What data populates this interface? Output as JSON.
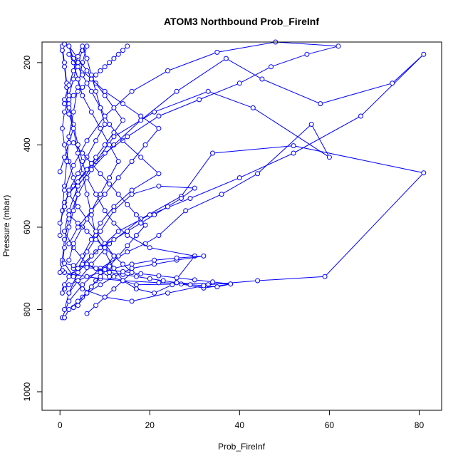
{
  "chart_data": {
    "type": "line",
    "title": "ATOM3 Northbound Prob_FireInf",
    "xlabel": "Prob_FireInf",
    "ylabel": "Pressure (mbar)",
    "xlim": [
      -4,
      85
    ],
    "ylim": [
      1045,
      150
    ],
    "y_reversed": true,
    "grid": false,
    "legend": "none",
    "x_ticks": [
      0,
      20,
      40,
      60,
      80
    ],
    "y_ticks": [
      200,
      400,
      600,
      800,
      1000
    ],
    "series_color": "#0000ff",
    "marker": "open-circle",
    "series": [
      {
        "x": [
          0.5,
          2,
          5,
          9,
          15,
          19,
          22,
          28,
          36,
          44,
          56,
          60,
          43,
          33,
          21,
          12,
          8,
          4,
          2,
          1,
          3,
          6,
          11,
          17,
          27,
          32,
          38,
          22,
          14,
          9,
          6,
          3,
          1,
          0.5
        ],
        "y": [
          820,
          780,
          740,
          700,
          660,
          640,
          620,
          560,
          520,
          470,
          350,
          430,
          310,
          270,
          320,
          380,
          440,
          500,
          560,
          610,
          650,
          690,
          720,
          740,
          738,
          748,
          738,
          735,
          730,
          725,
          720,
          715,
          710,
          705
        ]
      },
      {
        "x": [
          1,
          2,
          4,
          8,
          13,
          20,
          29,
          40,
          52,
          67,
          81,
          74,
          58,
          45,
          37,
          26,
          18,
          12,
          7,
          4,
          2,
          1,
          0.5,
          3,
          5,
          10,
          16,
          24,
          33,
          44,
          59,
          81,
          52,
          34,
          27,
          18,
          11,
          7,
          4,
          2
        ],
        "y": [
          800,
          760,
          710,
          660,
          610,
          570,
          530,
          480,
          420,
          330,
          180,
          250,
          300,
          240,
          190,
          270,
          340,
          400,
          460,
          520,
          580,
          630,
          680,
          720,
          750,
          770,
          780,
          760,
          740,
          730,
          720,
          468,
          402,
          420,
          525,
          580,
          640,
          690,
          730,
          760
        ]
      },
      {
        "x": [
          0.5,
          1,
          1.5,
          2,
          3,
          4,
          5,
          6,
          7,
          8,
          10,
          12,
          14,
          17,
          21,
          25,
          30,
          20,
          15,
          12,
          10,
          8,
          6,
          5,
          4,
          3,
          2,
          1.5,
          1,
          0.5
        ],
        "y": [
          170,
          210,
          260,
          310,
          360,
          420,
          470,
          520,
          570,
          620,
          660,
          700,
          730,
          750,
          760,
          740,
          670,
          650,
          620,
          590,
          560,
          520,
          480,
          440,
          400,
          350,
          300,
          250,
          200,
          160
        ]
      },
      {
        "x": [
          0,
          0.5,
          1,
          2,
          3,
          4,
          3,
          2,
          1,
          0.5,
          1,
          2,
          3,
          4,
          5,
          6,
          5,
          4,
          3,
          2,
          1.5,
          1,
          0.5,
          0
        ],
        "y": [
          710,
          690,
          650,
          600,
          560,
          520,
          480,
          440,
          400,
          360,
          320,
          280,
          240,
          200,
          170,
          160,
          200,
          260,
          320,
          380,
          440,
          500,
          560,
          620
        ]
      },
      {
        "x": [
          2,
          3,
          5,
          7,
          9,
          11,
          13,
          11,
          9,
          7,
          5,
          4,
          3,
          2,
          3,
          5,
          7,
          9,
          11,
          14,
          18,
          22,
          16,
          12,
          9,
          7,
          5,
          3
        ],
        "y": [
          680,
          640,
          600,
          560,
          520,
          480,
          440,
          400,
          360,
          320,
          280,
          240,
          200,
          160,
          190,
          230,
          270,
          310,
          350,
          390,
          430,
          470,
          510,
          550,
          590,
          630,
          670,
          700
        ]
      },
      {
        "x": [
          1,
          3,
          6,
          10,
          15,
          22,
          31,
          40,
          47,
          55,
          62,
          48,
          35,
          24,
          16,
          10,
          6,
          3,
          1
        ],
        "y": [
          540,
          500,
          460,
          420,
          380,
          330,
          290,
          250,
          210,
          180,
          160,
          150,
          175,
          220,
          270,
          330,
          390,
          450,
          510
        ]
      },
      {
        "x": [
          4,
          6,
          8,
          10,
          12,
          10,
          8,
          6,
          4,
          2,
          4,
          6,
          8,
          10,
          12,
          14,
          12,
          10,
          8,
          6,
          4,
          2,
          1
        ],
        "y": [
          790,
          760,
          730,
          700,
          670,
          640,
          610,
          580,
          550,
          520,
          490,
          460,
          430,
          400,
          370,
          340,
          310,
          280,
          250,
          220,
          190,
          160,
          155
        ]
      },
      {
        "x": [
          0,
          1,
          2,
          3,
          2,
          1,
          2,
          3,
          4,
          5,
          6,
          7,
          8,
          9,
          10,
          8,
          6,
          4,
          2,
          1,
          0
        ],
        "y": [
          465,
          430,
          395,
          360,
          325,
          290,
          255,
          220,
          185,
          160,
          190,
          230,
          270,
          310,
          350,
          390,
          430,
          470,
          510,
          550,
          590
        ]
      },
      {
        "x": [
          3,
          5,
          7,
          9,
          11,
          13,
          15,
          17,
          19,
          17,
          15,
          13,
          11,
          9,
          7,
          5,
          3
        ],
        "y": [
          795,
          770,
          745,
          720,
          695,
          670,
          645,
          620,
          595,
          570,
          545,
          520,
          495,
          470,
          445,
          420,
          395
        ]
      },
      {
        "x": [
          1,
          2,
          4,
          6,
          9,
          12,
          16,
          21,
          26,
          32,
          26,
          21,
          16,
          12,
          9,
          6,
          4,
          2,
          1
        ],
        "y": [
          820,
          800,
          780,
          760,
          740,
          720,
          700,
          690,
          680,
          670,
          675,
          680,
          690,
          700,
          710,
          720,
          730,
          740,
          750
        ]
      },
      {
        "x": [
          5,
          7,
          9,
          12,
          15,
          18,
          21,
          24,
          27,
          30,
          22,
          16,
          12,
          9,
          6,
          4
        ],
        "y": [
          690,
          670,
          650,
          630,
          610,
          590,
          570,
          550,
          530,
          505,
          500,
          520,
          560,
          610,
          660,
          700
        ]
      },
      {
        "x": [
          2,
          4,
          7,
          10,
          13,
          16,
          19,
          22,
          18,
          14,
          10,
          7,
          4,
          2
        ],
        "y": [
          640,
          600,
          560,
          520,
          480,
          440,
          400,
          360,
          330,
          300,
          270,
          240,
          210,
          180
        ]
      },
      {
        "x": [
          0.5,
          1,
          2,
          4,
          6,
          8,
          11,
          14,
          17,
          20,
          23,
          26,
          29,
          32,
          35,
          38,
          34,
          30,
          26,
          22,
          18,
          14,
          10,
          6,
          3,
          1
        ],
        "y": [
          760,
          740,
          720,
          700,
          690,
          700,
          710,
          715,
          720,
          725,
          730,
          735,
          740,
          742,
          745,
          738,
          733,
          728,
          723,
          718,
          713,
          708,
          703,
          698,
          693,
          688
        ]
      },
      {
        "x": [
          6,
          8,
          10,
          12,
          14,
          16,
          14,
          12,
          10,
          8,
          6,
          4,
          2
        ],
        "y": [
          810,
          790,
          770,
          750,
          730,
          710,
          690,
          670,
          650,
          630,
          610,
          590,
          570
        ]
      },
      {
        "x": [
          1,
          2,
          3,
          4,
          5,
          6,
          7,
          8,
          9,
          10,
          11,
          12,
          13,
          14,
          15
        ],
        "y": [
          300,
          290,
          280,
          270,
          260,
          250,
          240,
          230,
          220,
          210,
          200,
          190,
          180,
          170,
          160
        ]
      }
    ]
  }
}
